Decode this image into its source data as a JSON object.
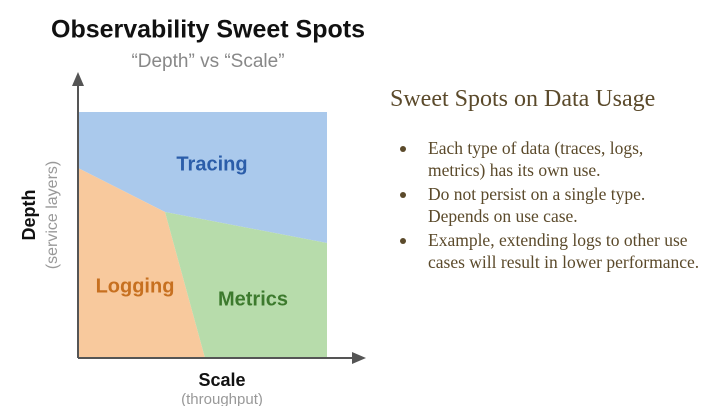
{
  "diagram": {
    "title": "Observability Sweet Spots",
    "subtitle": "“Depth” vs “Scale”",
    "y_axis": {
      "label": "Depth",
      "sublabel": "(service layers)"
    },
    "x_axis": {
      "label": "Scale",
      "sublabel": "(throughput)"
    },
    "regions": [
      "Tracing",
      "Logging",
      "Metrics"
    ]
  },
  "panel": {
    "title": "Sweet Spots on Data Usage",
    "bullets": [
      "Each type of data (traces, logs, metrics) has its own use.",
      "Do not persist on a single type. Depends on use case.",
      "Example, extending logs to other use cases will result in lower performance."
    ]
  }
}
